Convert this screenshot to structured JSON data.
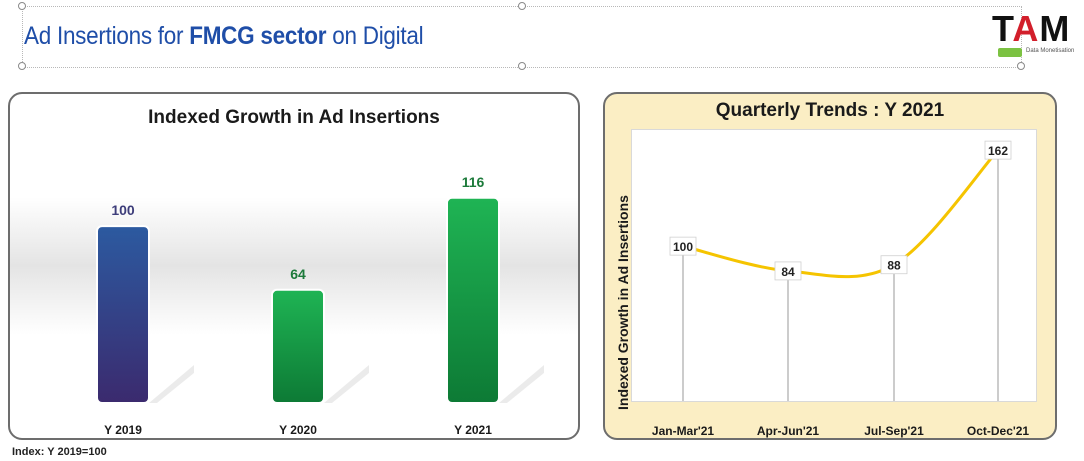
{
  "header": {
    "title_part1": "Ad Insertions for ",
    "title_bold": "FMCG sector",
    "title_part2": " on Digital",
    "logo_text_1": "T",
    "logo_text_2": "A",
    "logo_text_3": "M",
    "logo_sub": "Data Monetisation"
  },
  "footnote": "Index: Y 2019=100",
  "chart_data": [
    {
      "type": "bar",
      "title": "Indexed Growth in Ad Insertions",
      "categories": [
        "Y 2019",
        "Y 2020",
        "Y 2021"
      ],
      "values": [
        100,
        64,
        116
      ],
      "ylim": [
        0,
        130
      ],
      "grid": false,
      "bar_colors": [
        "#3a3a86",
        "#17a34a",
        "#17a34a"
      ],
      "label_colors": [
        "#3d3d7a",
        "#1c7a3a",
        "#1c7a3a"
      ]
    },
    {
      "type": "line",
      "title": "Quarterly Trends : Y 2021",
      "ylabel": "Indexed Growth in Ad Insertions",
      "categories": [
        "Jan-Mar'21",
        "Apr-Jun'21",
        "Jul-Sep'21",
        "Oct-Dec'21"
      ],
      "values": [
        100,
        84,
        88,
        162
      ],
      "ylim": [
        0,
        175
      ],
      "grid": false,
      "line_color": "#f5c400"
    }
  ]
}
